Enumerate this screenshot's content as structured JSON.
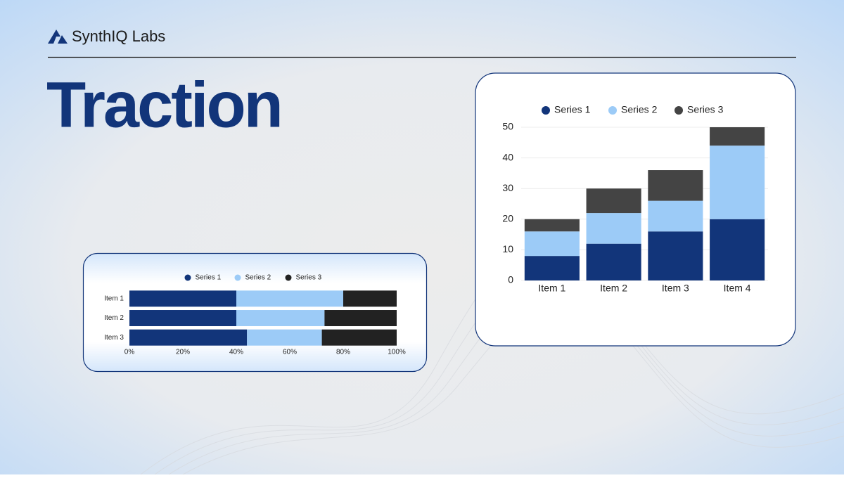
{
  "header": {
    "brand": "SynthIQ Labs",
    "title": "Traction"
  },
  "chart_data": [
    {
      "type": "bar",
      "orientation": "horizontal",
      "categories": [
        "Item 1",
        "Item 2",
        "Item 3"
      ],
      "series": [
        {
          "name": "Series 1",
          "color": "#12357a",
          "values": [
            40,
            40,
            44
          ]
        },
        {
          "name": "Series 2",
          "color": "#9ccbf7",
          "values": [
            40,
            33,
            28
          ]
        },
        {
          "name": "Series 3",
          "color": "#222222",
          "values": [
            20,
            27,
            28
          ]
        }
      ],
      "xlim": [
        0,
        100
      ],
      "xticks": [
        {
          "value": 0,
          "label": "0%"
        },
        {
          "value": 20,
          "label": "20%"
        },
        {
          "value": 40,
          "label": "40%"
        },
        {
          "value": 60,
          "label": "60%"
        },
        {
          "value": 80,
          "label": "80%"
        },
        {
          "value": 100,
          "label": "100%"
        }
      ],
      "grid": false,
      "legend": "top"
    },
    {
      "type": "bar",
      "orientation": "vertical",
      "categories": [
        "Item 1",
        "Item 2",
        "Item 3",
        "Item 4"
      ],
      "series": [
        {
          "name": "Series 1",
          "color": "#12357a",
          "values": [
            8,
            12,
            16,
            20
          ]
        },
        {
          "name": "Series 2",
          "color": "#9ccbf7",
          "values": [
            8,
            10,
            10,
            24
          ]
        },
        {
          "name": "Series 3",
          "color": "#444444",
          "values": [
            4,
            8,
            10,
            6
          ]
        }
      ],
      "ylim": [
        0,
        50
      ],
      "yticks": [
        0,
        10,
        20,
        30,
        40,
        50
      ],
      "grid": true,
      "legend": "top"
    }
  ]
}
